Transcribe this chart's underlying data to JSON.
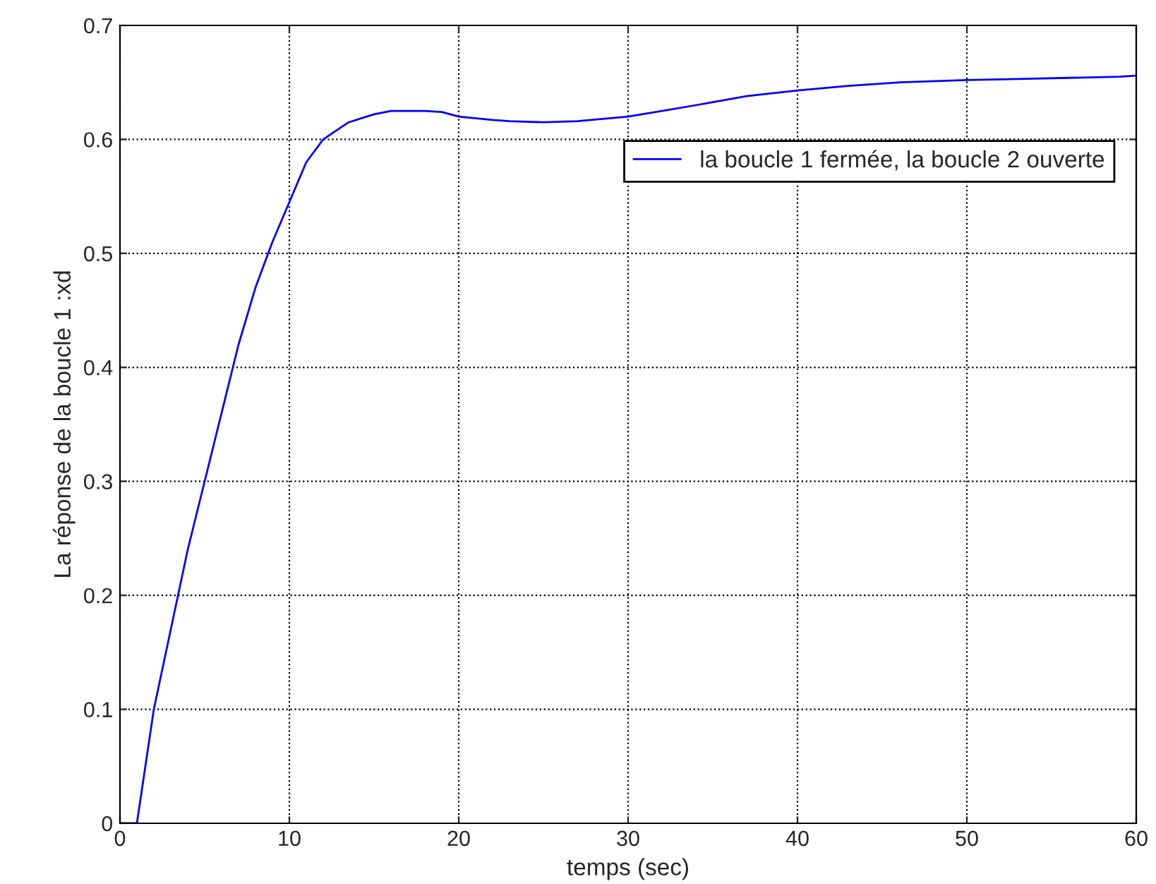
{
  "chart_data": {
    "type": "line",
    "xlabel": "temps (sec)",
    "ylabel": "La réponse de la boucle 1 :xd",
    "x": [
      0,
      1,
      1.5,
      2,
      3,
      4,
      5,
      6,
      7,
      8,
      9,
      10,
      11,
      12,
      13.5,
      15,
      16,
      18,
      19,
      20,
      22,
      23,
      25,
      27,
      30,
      32,
      34,
      37,
      40,
      43,
      46,
      50,
      53,
      56,
      59,
      60
    ],
    "series": [
      {
        "name": "la boucle 1 fermée, la boucle 2 ouverte",
        "color": "#0000ff",
        "values": [
          0,
          0,
          0.05,
          0.1,
          0.17,
          0.24,
          0.3,
          0.36,
          0.42,
          0.47,
          0.51,
          0.545,
          0.58,
          0.6,
          0.615,
          0.622,
          0.625,
          0.625,
          0.624,
          0.62,
          0.617,
          0.616,
          0.615,
          0.616,
          0.62,
          0.625,
          0.63,
          0.638,
          0.643,
          0.647,
          0.65,
          0.652,
          0.653,
          0.654,
          0.655,
          0.656
        ]
      }
    ],
    "xlim": [
      0,
      60
    ],
    "xticks": [
      0,
      10,
      20,
      30,
      40,
      50,
      60
    ],
    "ylim": [
      0,
      0.7
    ],
    "yticks": [
      0,
      0.1,
      0.2,
      0.3,
      0.4,
      0.5,
      0.6,
      0.7
    ],
    "grid": true,
    "legend": "right",
    "line_style": "solid",
    "marker": "none"
  }
}
